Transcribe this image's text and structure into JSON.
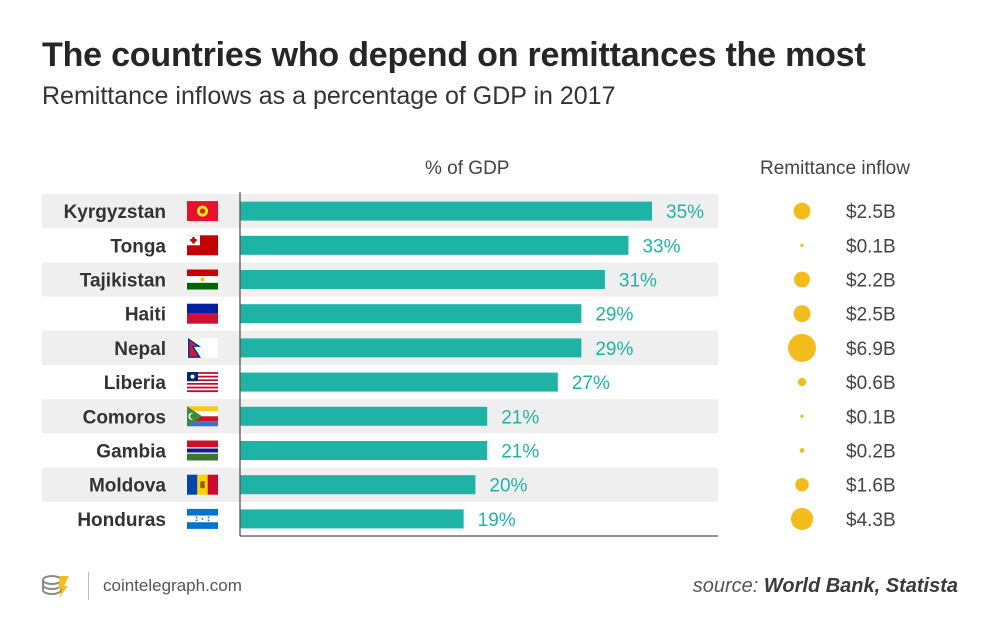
{
  "chart_data": {
    "type": "bar",
    "orientation": "horizontal",
    "title": "The countries who depend on remittances the most",
    "subtitle": "Remittance inflows as a percentage of GDP in 2017",
    "bar_column_label": "% of GDP",
    "bubble_column_label": "Remittance inflow",
    "categories": [
      "Kyrgyzstan",
      "Tonga",
      "Tajikistan",
      "Haiti",
      "Nepal",
      "Liberia",
      "Comoros",
      "Gambia",
      "Moldova",
      "Honduras"
    ],
    "values": [
      35,
      33,
      31,
      29,
      29,
      27,
      21,
      21,
      20,
      19
    ],
    "value_labels": [
      "35%",
      "33%",
      "31%",
      "29%",
      "29%",
      "27%",
      "21%",
      "21%",
      "20%",
      "19%"
    ],
    "inflow_values": [
      2.5,
      0.1,
      2.2,
      2.5,
      6.9,
      0.6,
      0.1,
      0.2,
      1.6,
      4.3
    ],
    "inflow_labels": [
      "$2.5B",
      "$0.1B",
      "$2.2B",
      "$2.5B",
      "$6.9B",
      "$0.6B",
      "$0.1B",
      "$0.2B",
      "$1.6B",
      "$4.3B"
    ],
    "xlim": [
      0,
      40
    ],
    "bar_color": "#1fb3a6",
    "value_label_color": "#1fb3a6",
    "bubble_color": "#f3bb1c",
    "stripe_color": "#efefef",
    "flags": [
      "kyrgyzstan-flag",
      "tonga-flag",
      "tajikistan-flag",
      "haiti-flag",
      "nepal-flag",
      "liberia-flag",
      "comoros-flag",
      "gambia-flag",
      "moldova-flag",
      "honduras-flag"
    ]
  },
  "footer": {
    "site": "cointelegraph.com",
    "source_label": "source:",
    "source_names": "World Bank, Statista"
  }
}
